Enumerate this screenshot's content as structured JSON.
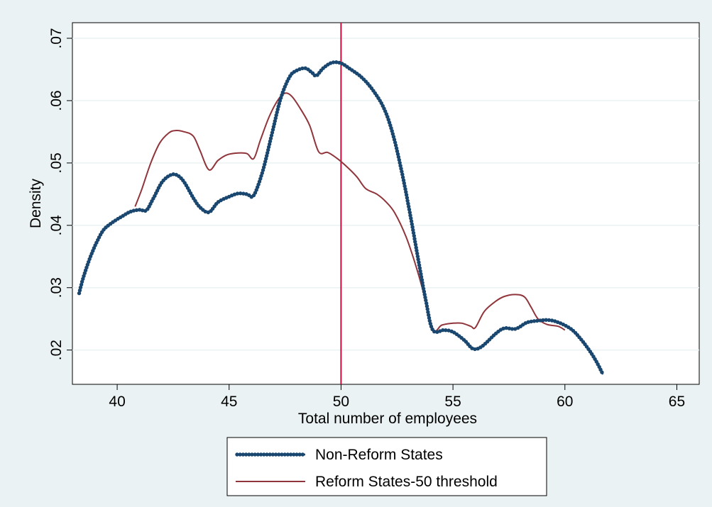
{
  "chart_data": {
    "type": "line",
    "xlabel": "Total number of employees",
    "ylabel": "Density",
    "xlim": [
      38,
      66
    ],
    "ylim": [
      0.0145,
      0.0725
    ],
    "x_ticks": [
      40,
      45,
      50,
      55,
      60,
      65
    ],
    "x_tick_labels": [
      "40",
      "45",
      "50",
      "55",
      "60",
      "65"
    ],
    "y_ticks": [
      0.02,
      0.03,
      0.04,
      0.05,
      0.06,
      0.07
    ],
    "y_tick_labels": [
      ".02",
      ".03",
      ".04",
      ".05",
      ".06",
      ".07"
    ],
    "grid": "horizontal",
    "legend_position": "bottom",
    "reference_line": {
      "x": 50,
      "color": "#c00f3c"
    },
    "series": [
      {
        "name": "Non-Reform States",
        "color": "#1a476f",
        "style": "connected-dots",
        "points": [
          [
            38.3,
            0.0291
          ],
          [
            38.5,
            0.0318
          ],
          [
            38.8,
            0.0349
          ],
          [
            39.1,
            0.0374
          ],
          [
            39.4,
            0.0393
          ],
          [
            39.8,
            0.0405
          ],
          [
            40.2,
            0.0414
          ],
          [
            40.6,
            0.0422
          ],
          [
            41.0,
            0.0425
          ],
          [
            41.3,
            0.0424
          ],
          [
            41.6,
            0.0442
          ],
          [
            42.0,
            0.0469
          ],
          [
            42.4,
            0.0481
          ],
          [
            42.7,
            0.048
          ],
          [
            43.0,
            0.0469
          ],
          [
            43.4,
            0.0444
          ],
          [
            43.7,
            0.0429
          ],
          [
            44.1,
            0.0421
          ],
          [
            44.5,
            0.0437
          ],
          [
            45.0,
            0.0446
          ],
          [
            45.4,
            0.0451
          ],
          [
            45.8,
            0.045
          ],
          [
            46.1,
            0.0448
          ],
          [
            46.5,
            0.0487
          ],
          [
            46.9,
            0.0545
          ],
          [
            47.3,
            0.0603
          ],
          [
            47.7,
            0.0638
          ],
          [
            48.0,
            0.0648
          ],
          [
            48.4,
            0.0652
          ],
          [
            48.7,
            0.0645
          ],
          [
            48.9,
            0.064
          ],
          [
            49.2,
            0.0652
          ],
          [
            49.6,
            0.0661
          ],
          [
            50.0,
            0.066
          ],
          [
            50.4,
            0.0651
          ],
          [
            50.9,
            0.0638
          ],
          [
            51.4,
            0.0618
          ],
          [
            51.9,
            0.0589
          ],
          [
            52.3,
            0.0548
          ],
          [
            52.7,
            0.0488
          ],
          [
            53.1,
            0.0415
          ],
          [
            53.5,
            0.0335
          ],
          [
            53.8,
            0.0277
          ],
          [
            54.1,
            0.0232
          ],
          [
            54.6,
            0.0232
          ],
          [
            55.0,
            0.0229
          ],
          [
            55.5,
            0.0216
          ],
          [
            55.9,
            0.0202
          ],
          [
            56.3,
            0.0206
          ],
          [
            56.9,
            0.0226
          ],
          [
            57.3,
            0.0235
          ],
          [
            57.8,
            0.0234
          ],
          [
            58.3,
            0.0244
          ],
          [
            58.8,
            0.0247
          ],
          [
            59.3,
            0.0248
          ],
          [
            59.8,
            0.0243
          ],
          [
            60.3,
            0.0233
          ],
          [
            60.7,
            0.0218
          ],
          [
            61.1,
            0.0199
          ],
          [
            61.4,
            0.0182
          ],
          [
            61.7,
            0.0161
          ]
        ]
      },
      {
        "name": "Reform States-50 threshold",
        "color": "#90353b",
        "style": "line",
        "points": [
          [
            40.8,
            0.043
          ],
          [
            41.1,
            0.0458
          ],
          [
            41.5,
            0.05
          ],
          [
            41.9,
            0.0532
          ],
          [
            42.3,
            0.0548
          ],
          [
            42.6,
            0.0552
          ],
          [
            43.0,
            0.055
          ],
          [
            43.4,
            0.0543
          ],
          [
            43.7,
            0.052
          ],
          [
            44.1,
            0.0489
          ],
          [
            44.5,
            0.0504
          ],
          [
            44.9,
            0.0513
          ],
          [
            45.4,
            0.0516
          ],
          [
            45.8,
            0.0515
          ],
          [
            46.1,
            0.0507
          ],
          [
            46.4,
            0.0537
          ],
          [
            46.8,
            0.0575
          ],
          [
            47.2,
            0.0602
          ],
          [
            47.5,
            0.0612
          ],
          [
            47.8,
            0.0607
          ],
          [
            48.2,
            0.0586
          ],
          [
            48.6,
            0.056
          ],
          [
            49.0,
            0.0518
          ],
          [
            49.4,
            0.0517
          ],
          [
            49.8,
            0.0508
          ],
          [
            50.2,
            0.0496
          ],
          [
            50.7,
            0.0478
          ],
          [
            51.1,
            0.0459
          ],
          [
            51.6,
            0.045
          ],
          [
            52.0,
            0.0438
          ],
          [
            52.4,
            0.042
          ],
          [
            52.9,
            0.0382
          ],
          [
            53.3,
            0.034
          ],
          [
            53.7,
            0.029
          ],
          [
            54.1,
            0.0232
          ],
          [
            54.5,
            0.024
          ],
          [
            55.0,
            0.0243
          ],
          [
            55.4,
            0.0243
          ],
          [
            55.8,
            0.0238
          ],
          [
            56.0,
            0.0236
          ],
          [
            56.4,
            0.0262
          ],
          [
            56.9,
            0.0278
          ],
          [
            57.3,
            0.0286
          ],
          [
            57.8,
            0.0289
          ],
          [
            58.2,
            0.0285
          ],
          [
            58.5,
            0.0268
          ],
          [
            58.8,
            0.025
          ],
          [
            59.2,
            0.0241
          ],
          [
            59.7,
            0.0238
          ],
          [
            60.0,
            0.0232
          ]
        ]
      }
    ]
  }
}
